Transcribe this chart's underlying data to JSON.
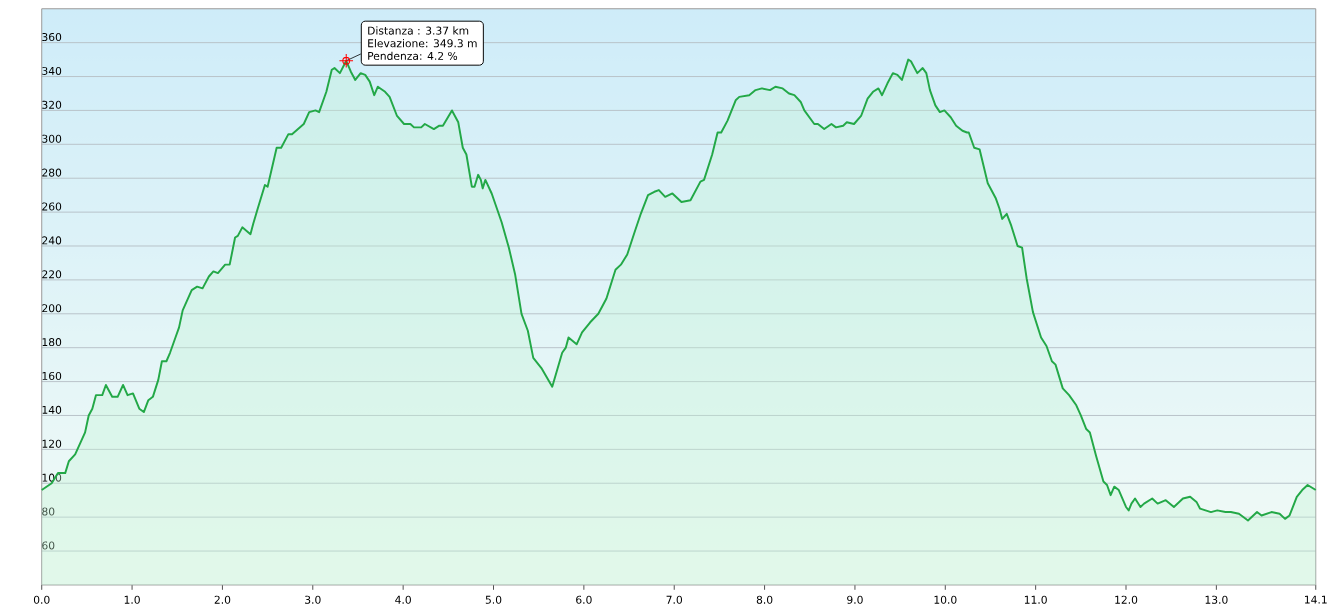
{
  "chart_data": {
    "type": "area",
    "color": "#23a847",
    "marker": "none",
    "line_style": "solid",
    "grid": "y",
    "xlim": [
      0,
      14.1
    ],
    "ylim": [
      40,
      380
    ],
    "xticks": [
      {
        "value": 0,
        "label": "0.0"
      },
      {
        "value": 1,
        "label": "1.0"
      },
      {
        "value": 2,
        "label": "2.0"
      },
      {
        "value": 3,
        "label": "3.0"
      },
      {
        "value": 4,
        "label": "4.0"
      },
      {
        "value": 5,
        "label": "5.0"
      },
      {
        "value": 6,
        "label": "6.0"
      },
      {
        "value": 7,
        "label": "7.0"
      },
      {
        "value": 8,
        "label": "8.0"
      },
      {
        "value": 9,
        "label": "9.0"
      },
      {
        "value": 10,
        "label": "10.0"
      },
      {
        "value": 11,
        "label": "11.0"
      },
      {
        "value": 12,
        "label": "12.0"
      },
      {
        "value": 13,
        "label": "13.0"
      },
      14.1
    ],
    "yticks": [
      60,
      80,
      100,
      120,
      140,
      160,
      180,
      200,
      220,
      240,
      260,
      280,
      300,
      320,
      340,
      360
    ],
    "annotations": [
      "Distanza : 3.37 km",
      "Elevazione: 349.3 m",
      {
        "text": "Pendenza: 4.2 %",
        "x": 3.37,
        "y": 349.3
      }
    ],
    "x": [
      0,
      0.11,
      0.18,
      0.26,
      0.3,
      0.37,
      0.48,
      0.52,
      0.56,
      0.6,
      0.67,
      0.71,
      0.78,
      0.84,
      0.9,
      0.95,
      1.01,
      1.08,
      1.13,
      1.18,
      1.23,
      1.29,
      1.33,
      1.38,
      1.42,
      1.48,
      1.52,
      1.56,
      1.66,
      1.72,
      1.78,
      1.85,
      1.9,
      1.95,
      2.03,
      2.08,
      2.14,
      2.17,
      2.22,
      2.31,
      2.34,
      2.39,
      2.47,
      2.5,
      2.6,
      2.65,
      2.73,
      2.77,
      2.9,
      2.96,
      3.03,
      3.07,
      3.15,
      3.21,
      3.24,
      3.3,
      3.37,
      3.42,
      3.47,
      3.53,
      3.58,
      3.63,
      3.68,
      3.72,
      3.8,
      3.85,
      3.93,
      4.01,
      4.08,
      4.12,
      4.2,
      4.24,
      4.34,
      4.4,
      4.44,
      4.54,
      4.61,
      4.66,
      4.7,
      4.76,
      4.79,
      4.83,
      4.86,
      4.88,
      4.91,
      4.98,
      5.09,
      5.17,
      5.24,
      5.31,
      5.38,
      5.44,
      5.53,
      5.65,
      5.76,
      5.8,
      5.83,
      5.92,
      5.98,
      6.07,
      6.16,
      6.25,
      6.35,
      6.41,
      6.48,
      6.56,
      6.63,
      6.71,
      6.78,
      6.83,
      6.9,
      6.98,
      7.08,
      7.18,
      7.29,
      7.33,
      7.42,
      7.48,
      7.52,
      7.59,
      7.68,
      7.72,
      7.83,
      7.9,
      7.97,
      8.06,
      8.12,
      8.2,
      8.27,
      8.33,
      8.4,
      8.44,
      8.55,
      8.59,
      8.66,
      8.74,
      8.79,
      8.87,
      8.91,
      8.99,
      9.07,
      9.14,
      9.2,
      9.26,
      9.3,
      9.36,
      9.42,
      9.47,
      9.52,
      9.59,
      9.62,
      9.69,
      9.75,
      9.79,
      9.83,
      9.89,
      9.94,
      9.99,
      10.06,
      10.12,
      10.19,
      10.24,
      10.26,
      10.32,
      10.38,
      10.47,
      10.56,
      10.6,
      10.63,
      10.68,
      10.73,
      10.8,
      10.85,
      10.9,
      10.97,
      11.06,
      11.12,
      11.18,
      11.22,
      11.3,
      11.37,
      11.45,
      11.5,
      11.56,
      11.6,
      11.67,
      11.75,
      11.79,
      11.83,
      11.87,
      11.92,
      12.0,
      12.03,
      12.06,
      12.1,
      12.16,
      12.2,
      12.29,
      12.35,
      12.44,
      12.53,
      12.63,
      12.71,
      12.78,
      12.82,
      12.88,
      12.94,
      13.01,
      13.1,
      13.16,
      13.25,
      13.35,
      13.45,
      13.5,
      13.61,
      13.7,
      13.76,
      13.81,
      13.89,
      13.95,
      14.01,
      14.1
    ],
    "values": [
      96,
      100,
      106,
      106,
      113,
      117,
      130,
      140,
      144,
      152,
      152,
      158,
      151,
      151,
      158,
      152,
      153,
      144,
      142,
      149,
      151,
      161,
      172,
      172,
      177,
      186,
      192,
      202,
      214,
      216,
      215,
      222,
      225,
      224,
      229,
      229,
      245,
      246,
      251,
      247,
      253,
      262,
      276,
      275,
      298,
      298,
      306,
      306,
      312,
      319,
      320,
      319,
      331,
      344,
      345,
      342,
      349.3,
      343,
      338,
      342,
      341,
      337,
      329,
      334,
      331,
      328,
      317,
      312,
      312,
      310,
      310,
      312,
      309,
      311,
      311,
      320,
      313,
      298,
      294,
      275,
      275,
      282,
      279,
      274,
      279,
      271,
      254,
      239,
      223,
      200,
      190,
      174,
      168,
      157,
      177,
      180,
      186,
      182,
      189,
      195,
      200,
      209,
      226,
      229,
      235,
      248,
      259,
      270,
      272,
      273,
      269,
      271,
      266,
      267,
      278,
      279,
      294,
      307,
      307,
      314,
      326,
      328,
      329,
      332,
      333,
      332,
      334,
      333,
      330,
      329,
      325,
      320,
      312,
      312,
      309,
      312,
      310,
      311,
      313,
      312,
      317,
      327,
      331,
      333,
      329,
      336,
      342,
      341,
      338,
      350,
      349,
      342,
      345,
      342,
      332,
      323,
      319,
      320,
      316,
      311,
      308,
      307,
      307,
      298,
      297,
      277,
      268,
      262,
      256,
      259,
      252,
      240,
      239,
      221,
      201,
      186,
      181,
      172,
      170,
      156,
      152,
      146,
      140,
      132,
      130,
      116,
      101,
      99,
      93,
      98,
      96,
      86,
      84,
      88,
      91,
      86,
      88,
      91,
      88,
      90,
      86,
      91,
      92,
      89,
      85,
      84,
      83,
      84,
      83,
      83,
      82,
      78,
      83,
      81,
      83,
      82,
      79,
      81,
      92,
      96,
      99,
      96
    ]
  }
}
